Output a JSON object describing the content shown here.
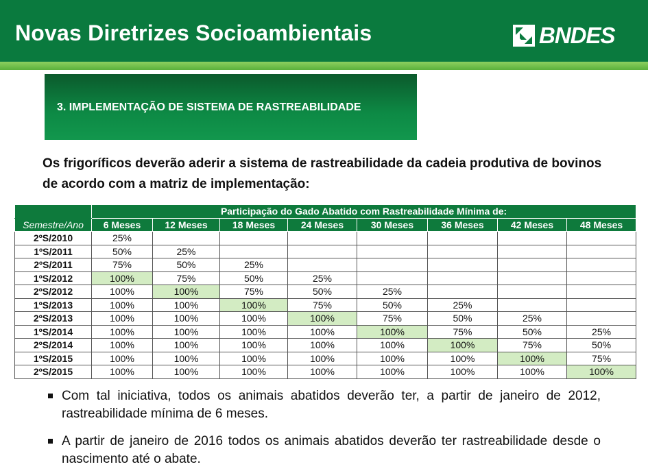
{
  "header": {
    "title": "Novas Diretrizes Socioambientais",
    "logo_text": "BNDES",
    "logo_icon": "bndes-logo-icon",
    "colors": {
      "header_green": "#0a7a3e",
      "stripe_green": "#6cbf45"
    }
  },
  "section": {
    "title": "3. IMPLEMENTAÇÃO DE SISTEMA DE RASTREABILIDADE"
  },
  "intro": "Os frigoríficos deverão aderir a sistema de rastreabilidade da cadeia produtiva de bovinos de acordo com a matriz de implementação:",
  "table": {
    "group_header": "Participação do Gado Abatido com Rastreabilidade Mínima de:",
    "row_header": "Semestre/Ano",
    "columns": [
      "6 Meses",
      "12 Meses",
      "18 Meses",
      "24 Meses",
      "30 Meses",
      "36 Meses",
      "42 Meses",
      "48 Meses"
    ],
    "highlight_color": "#d3ecc3",
    "rows": [
      {
        "label": "2ºS/2010",
        "values": [
          "25%",
          "",
          "",
          "",
          "",
          "",
          "",
          ""
        ]
      },
      {
        "label": "1ºS/2011",
        "values": [
          "50%",
          "25%",
          "",
          "",
          "",
          "",
          "",
          ""
        ]
      },
      {
        "label": "2ºS/2011",
        "values": [
          "75%",
          "50%",
          "25%",
          "",
          "",
          "",
          "",
          ""
        ]
      },
      {
        "label": "1ºS/2012",
        "values": [
          "100%",
          "75%",
          "50%",
          "25%",
          "",
          "",
          "",
          ""
        ],
        "highlight": 0
      },
      {
        "label": "2ºS/2012",
        "values": [
          "100%",
          "100%",
          "75%",
          "50%",
          "25%",
          "",
          "",
          ""
        ],
        "highlight": 1
      },
      {
        "label": "1ºS/2013",
        "values": [
          "100%",
          "100%",
          "100%",
          "75%",
          "50%",
          "25%",
          "",
          ""
        ],
        "highlight": 2
      },
      {
        "label": "2ºS/2013",
        "values": [
          "100%",
          "100%",
          "100%",
          "100%",
          "75%",
          "50%",
          "25%",
          ""
        ],
        "highlight": 3
      },
      {
        "label": "1ºS/2014",
        "values": [
          "100%",
          "100%",
          "100%",
          "100%",
          "100%",
          "75%",
          "50%",
          "25%"
        ],
        "highlight": 4
      },
      {
        "label": "2ºS/2014",
        "values": [
          "100%",
          "100%",
          "100%",
          "100%",
          "100%",
          "100%",
          "75%",
          "50%"
        ],
        "highlight": 5
      },
      {
        "label": "1ºS/2015",
        "values": [
          "100%",
          "100%",
          "100%",
          "100%",
          "100%",
          "100%",
          "100%",
          "75%"
        ],
        "highlight": 6
      },
      {
        "label": "2ºS/2015",
        "values": [
          "100%",
          "100%",
          "100%",
          "100%",
          "100%",
          "100%",
          "100%",
          "100%"
        ],
        "highlight": 7
      }
    ]
  },
  "bullets": [
    "Com tal iniciativa, todos os animais abatidos deverão ter, a partir de janeiro de 2012, rastreabilidade mínima de 6 meses.",
    "A partir de janeiro de 2016  todos os animais abatidos deverão ter rastreabilidade desde o nascimento até o abate."
  ]
}
